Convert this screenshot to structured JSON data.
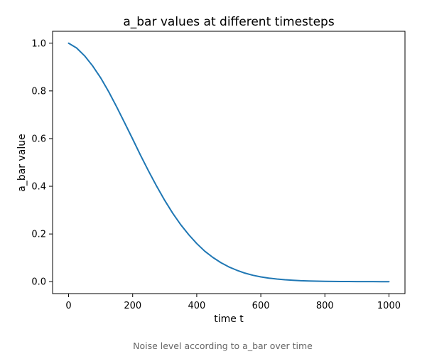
{
  "chart_data": {
    "type": "line",
    "title": "a_bar values at different timesteps",
    "xlabel": "time t",
    "ylabel": "a_bar value",
    "xlim": [
      -50,
      1050
    ],
    "ylim": [
      -0.05,
      1.05
    ],
    "xticks": [
      0,
      200,
      400,
      600,
      800,
      1000
    ],
    "xtick_labels": [
      "0",
      "200",
      "400",
      "600",
      "800",
      "1000"
    ],
    "yticks": [
      0.0,
      0.2,
      0.4,
      0.6,
      0.8,
      1.0
    ],
    "ytick_labels": [
      "0.0",
      "0.2",
      "0.4",
      "0.6",
      "0.8",
      "1.0"
    ],
    "grid": false,
    "series": [
      {
        "name": "a_bar",
        "color": "#1f77b4",
        "x": [
          0,
          25,
          50,
          75,
          100,
          125,
          150,
          175,
          200,
          225,
          250,
          275,
          300,
          325,
          350,
          375,
          400,
          425,
          450,
          475,
          500,
          525,
          550,
          575,
          600,
          625,
          650,
          675,
          700,
          725,
          750,
          775,
          800,
          825,
          850,
          875,
          900,
          925,
          950,
          975,
          1000
        ],
        "values": [
          1.0,
          0.98,
          0.947,
          0.905,
          0.855,
          0.797,
          0.733,
          0.666,
          0.598,
          0.529,
          0.463,
          0.4,
          0.341,
          0.287,
          0.239,
          0.197,
          0.16,
          0.128,
          0.102,
          0.08,
          0.062,
          0.048,
          0.036,
          0.027,
          0.02,
          0.015,
          0.011,
          0.008,
          0.006,
          0.004,
          0.003,
          0.002,
          0.0015,
          0.001,
          0.0008,
          0.0006,
          0.0004,
          0.0003,
          0.0002,
          0.0001,
          0.0001
        ]
      }
    ]
  },
  "caption": "Noise level according to a_bar over time"
}
